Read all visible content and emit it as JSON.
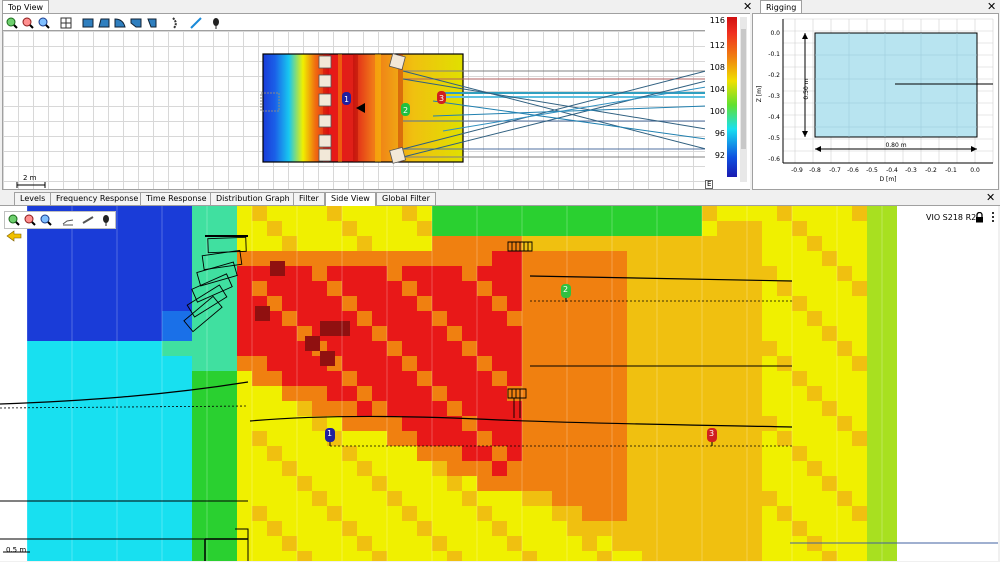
{
  "top_view": {
    "title": "Top View",
    "scale_label": "2 m",
    "colorbar_ticks": [
      "116",
      "112",
      "108",
      "104",
      "100",
      "96",
      "92"
    ],
    "corner_label": "E"
  },
  "rigging": {
    "title": "Rigging",
    "y_ticks": [
      "0.0",
      "-0.1",
      "-0.2",
      "-0.3",
      "-0.4",
      "-0.5",
      "-0.6"
    ],
    "x_ticks": [
      "-0.9",
      "-0.8",
      "-0.7",
      "-0.6",
      "-0.5",
      "-0.4",
      "-0.3",
      "-0.2",
      "-0.1",
      "0.0"
    ],
    "xlabel": "D [m]",
    "ylabel": "Z [m]",
    "height_dim": "0.50 m",
    "width_dim": "0.80 m"
  },
  "bottom_tabs": [
    "Levels",
    "Frequency Response",
    "Time Response",
    "Distribution Graph",
    "Filter",
    "Side View",
    "Global Filter"
  ],
  "active_tab": "Side View",
  "side_view": {
    "device_label": "VIO S218 R2",
    "scale_label": "0.5 m"
  },
  "markers": {
    "m1": "1",
    "m2": "2",
    "m3": "3"
  },
  "colors": {
    "blue": "#1a3cd8",
    "cyan": "#18e0f0",
    "green": "#2ad030",
    "yellow": "#f0f000",
    "orange": "#f08010",
    "red": "#e81818",
    "darkred": "#901010"
  }
}
